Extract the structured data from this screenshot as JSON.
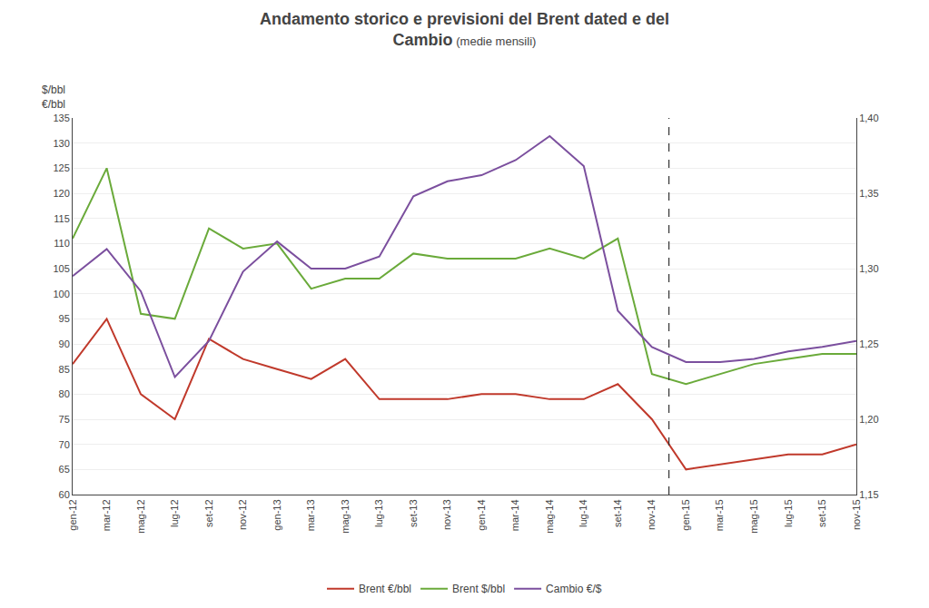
{
  "chart_data": {
    "type": "line",
    "title": "Andamento storico e previsioni del Brent dated e del\nCambio",
    "subtitle": "(medie mensili)",
    "ylabel": "$/bbl\n€/bbl",
    "categories": [
      "gen-12",
      "mar-12",
      "mag-12",
      "lug-12",
      "set-12",
      "nov-12",
      "gen-13",
      "mar-13",
      "mag-13",
      "lug-13",
      "set-13",
      "nov-13",
      "gen-14",
      "mar-14",
      "mag-14",
      "lug-14",
      "set-14",
      "nov-14",
      "gen-15",
      "mar-15",
      "mag-15",
      "lug-15",
      "set-15",
      "nov-15"
    ],
    "series": [
      {
        "name": "Brent €/bbl",
        "color": "#c0392b",
        "values": [
          86,
          95,
          80,
          75,
          91,
          87,
          85,
          83,
          87,
          79,
          79,
          79,
          80,
          80,
          79,
          79,
          82,
          75,
          65,
          66,
          67,
          68,
          68,
          70
        ]
      },
      {
        "name": "Brent $/bbl",
        "color": "#6aaa3a",
        "values": [
          111,
          125,
          96,
          95,
          113,
          109,
          110,
          101,
          103,
          103,
          108,
          107,
          107,
          107,
          109,
          107,
          111,
          84,
          82,
          84,
          86,
          87,
          88,
          88
        ]
      },
      {
        "name": "Cambio €/$",
        "color": "#7b4f9e",
        "axis": "y2",
        "values": [
          1.295,
          1.313,
          1.285,
          1.228,
          1.252,
          1.298,
          1.318,
          1.3,
          1.3,
          1.308,
          1.348,
          1.358,
          1.362,
          1.372,
          1.388,
          1.368,
          1.272,
          1.248,
          1.238,
          1.238,
          1.24,
          1.245,
          1.248,
          1.252
        ]
      }
    ],
    "ylim": [
      60,
      135
    ],
    "yticks": [
      60,
      65,
      70,
      75,
      80,
      85,
      90,
      95,
      100,
      105,
      110,
      115,
      120,
      125,
      130,
      135
    ],
    "y2lim": [
      1.15,
      1.4
    ],
    "y2ticks": [
      {
        "value": 1.15,
        "label": "1,15"
      },
      {
        "value": 1.2,
        "label": "1,20"
      },
      {
        "value": 1.25,
        "label": "1,25"
      },
      {
        "value": 1.3,
        "label": "1,30"
      },
      {
        "value": 1.35,
        "label": "1,35"
      },
      {
        "value": 1.4,
        "label": "1,40"
      }
    ],
    "grid": true,
    "legend": "bottom",
    "vline": {
      "x": 17.5,
      "line_style": "dashed"
    }
  }
}
